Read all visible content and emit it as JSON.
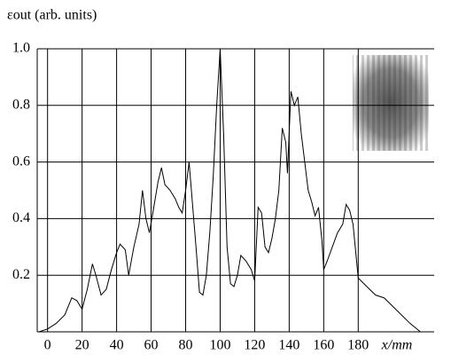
{
  "chart_data": {
    "type": "line",
    "ylabel": "εout (arb. units)",
    "xlabel": "x/mm",
    "x": [
      -5,
      0,
      5,
      10,
      14,
      17,
      20,
      23,
      26,
      28,
      31,
      34,
      37,
      40,
      42,
      45,
      47,
      50,
      53,
      55,
      57,
      59,
      61,
      64,
      66,
      68,
      71,
      74,
      76,
      78,
      80,
      82,
      84,
      86,
      88,
      90,
      92,
      94,
      96,
      98,
      100,
      102,
      104,
      106,
      108,
      110,
      112,
      115,
      118,
      120,
      122,
      124,
      126,
      128,
      130,
      132,
      134,
      136,
      138,
      139,
      141,
      143,
      145,
      147,
      149,
      151,
      153,
      155,
      157,
      159,
      160,
      162,
      165,
      168,
      171,
      173,
      175,
      177,
      180,
      185,
      190,
      195,
      200,
      205,
      210,
      216
    ],
    "series": [
      {
        "color": "#000000",
        "values": [
          0.0,
          0.01,
          0.03,
          0.06,
          0.12,
          0.11,
          0.08,
          0.15,
          0.24,
          0.2,
          0.13,
          0.15,
          0.22,
          0.28,
          0.31,
          0.29,
          0.2,
          0.3,
          0.38,
          0.5,
          0.4,
          0.35,
          0.42,
          0.53,
          0.58,
          0.52,
          0.5,
          0.47,
          0.44,
          0.42,
          0.5,
          0.6,
          0.45,
          0.3,
          0.14,
          0.13,
          0.2,
          0.35,
          0.55,
          0.8,
          1.0,
          0.7,
          0.3,
          0.17,
          0.16,
          0.2,
          0.27,
          0.25,
          0.22,
          0.18,
          0.44,
          0.42,
          0.3,
          0.28,
          0.33,
          0.4,
          0.5,
          0.72,
          0.67,
          0.56,
          0.85,
          0.8,
          0.83,
          0.7,
          0.6,
          0.5,
          0.46,
          0.41,
          0.44,
          0.32,
          0.22,
          0.25,
          0.3,
          0.35,
          0.38,
          0.45,
          0.43,
          0.38,
          0.19,
          0.16,
          0.13,
          0.12,
          0.09,
          0.06,
          0.03,
          0.0
        ]
      }
    ],
    "xlim": [
      -6,
      224
    ],
    "ylim": [
      0,
      1
    ],
    "xticks": [
      0,
      20,
      40,
      60,
      80,
      100,
      120,
      140,
      160,
      180
    ],
    "yticks": [
      {
        "value": 0.2,
        "label": "0.2"
      },
      {
        "value": 0.4,
        "label": "0.4"
      },
      {
        "value": 0.6,
        "label": "0.6"
      },
      {
        "value": 0.8,
        "label": "0.8"
      },
      {
        "value": 1,
        "label": "1.0"
      }
    ],
    "grid": true
  }
}
